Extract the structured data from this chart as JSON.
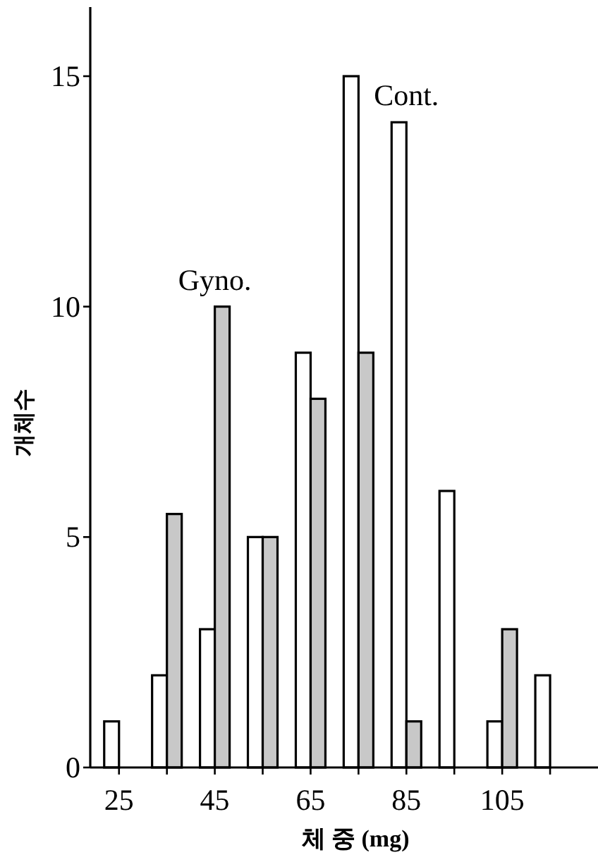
{
  "chart_data": {
    "type": "bar",
    "xlabel": "체 중 (mg)",
    "ylabel": "개체수",
    "x": [
      25,
      35,
      45,
      55,
      65,
      75,
      85,
      95,
      105,
      115
    ],
    "series": [
      {
        "color": "#ffffff",
        "values": [
          1,
          2,
          3,
          5,
          9,
          15,
          14,
          6,
          1,
          2
        ]
      },
      {
        "color": "#c8c8c8",
        "values": [
          null,
          5.5,
          10,
          5,
          8,
          9,
          1,
          null,
          3,
          null
        ]
      }
    ],
    "xlim": [
      19,
      125
    ],
    "xticks": [
      25,
      {
        "value": 35,
        "label": null
      },
      45,
      {
        "value": 55,
        "label": null
      },
      65,
      {
        "value": 75,
        "label": null
      },
      85,
      {
        "value": 95,
        "label": null
      },
      105,
      {
        "value": 115,
        "label": null
      }
    ],
    "ylim": [
      0,
      16.5
    ],
    "yticks": [
      0,
      5,
      10,
      15
    ],
    "grid": false,
    "annotations": [
      {
        "text": "Gyno.",
        "x": 45,
        "y": 10
      },
      {
        "text": "Cont.",
        "x": 85,
        "y": 14
      }
    ]
  }
}
